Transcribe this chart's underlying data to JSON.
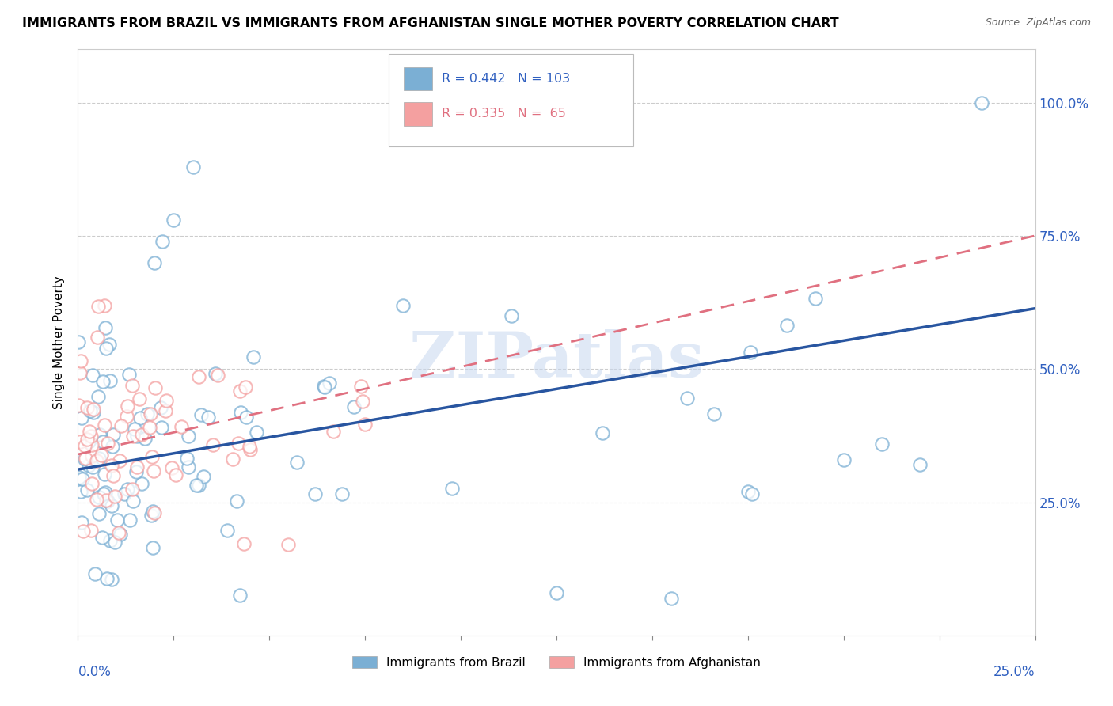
{
  "title": "IMMIGRANTS FROM BRAZIL VS IMMIGRANTS FROM AFGHANISTAN SINGLE MOTHER POVERTY CORRELATION CHART",
  "source": "Source: ZipAtlas.com",
  "ylabel": "Single Mother Poverty",
  "xlim": [
    0.0,
    0.25
  ],
  "ylim": [
    0.0,
    1.1
  ],
  "brazil_color": "#7BAFD4",
  "afghanistan_color": "#F4A0A0",
  "brazil_line_color": "#2855A0",
  "afghanistan_line_color": "#E07080",
  "brazil_R": 0.442,
  "brazil_N": 103,
  "afghanistan_R": 0.335,
  "afghanistan_N": 65,
  "watermark": "ZIPatlas",
  "legend_label_brazil": "Immigrants from Brazil",
  "legend_label_afghanistan": "Immigrants from Afghanistan"
}
